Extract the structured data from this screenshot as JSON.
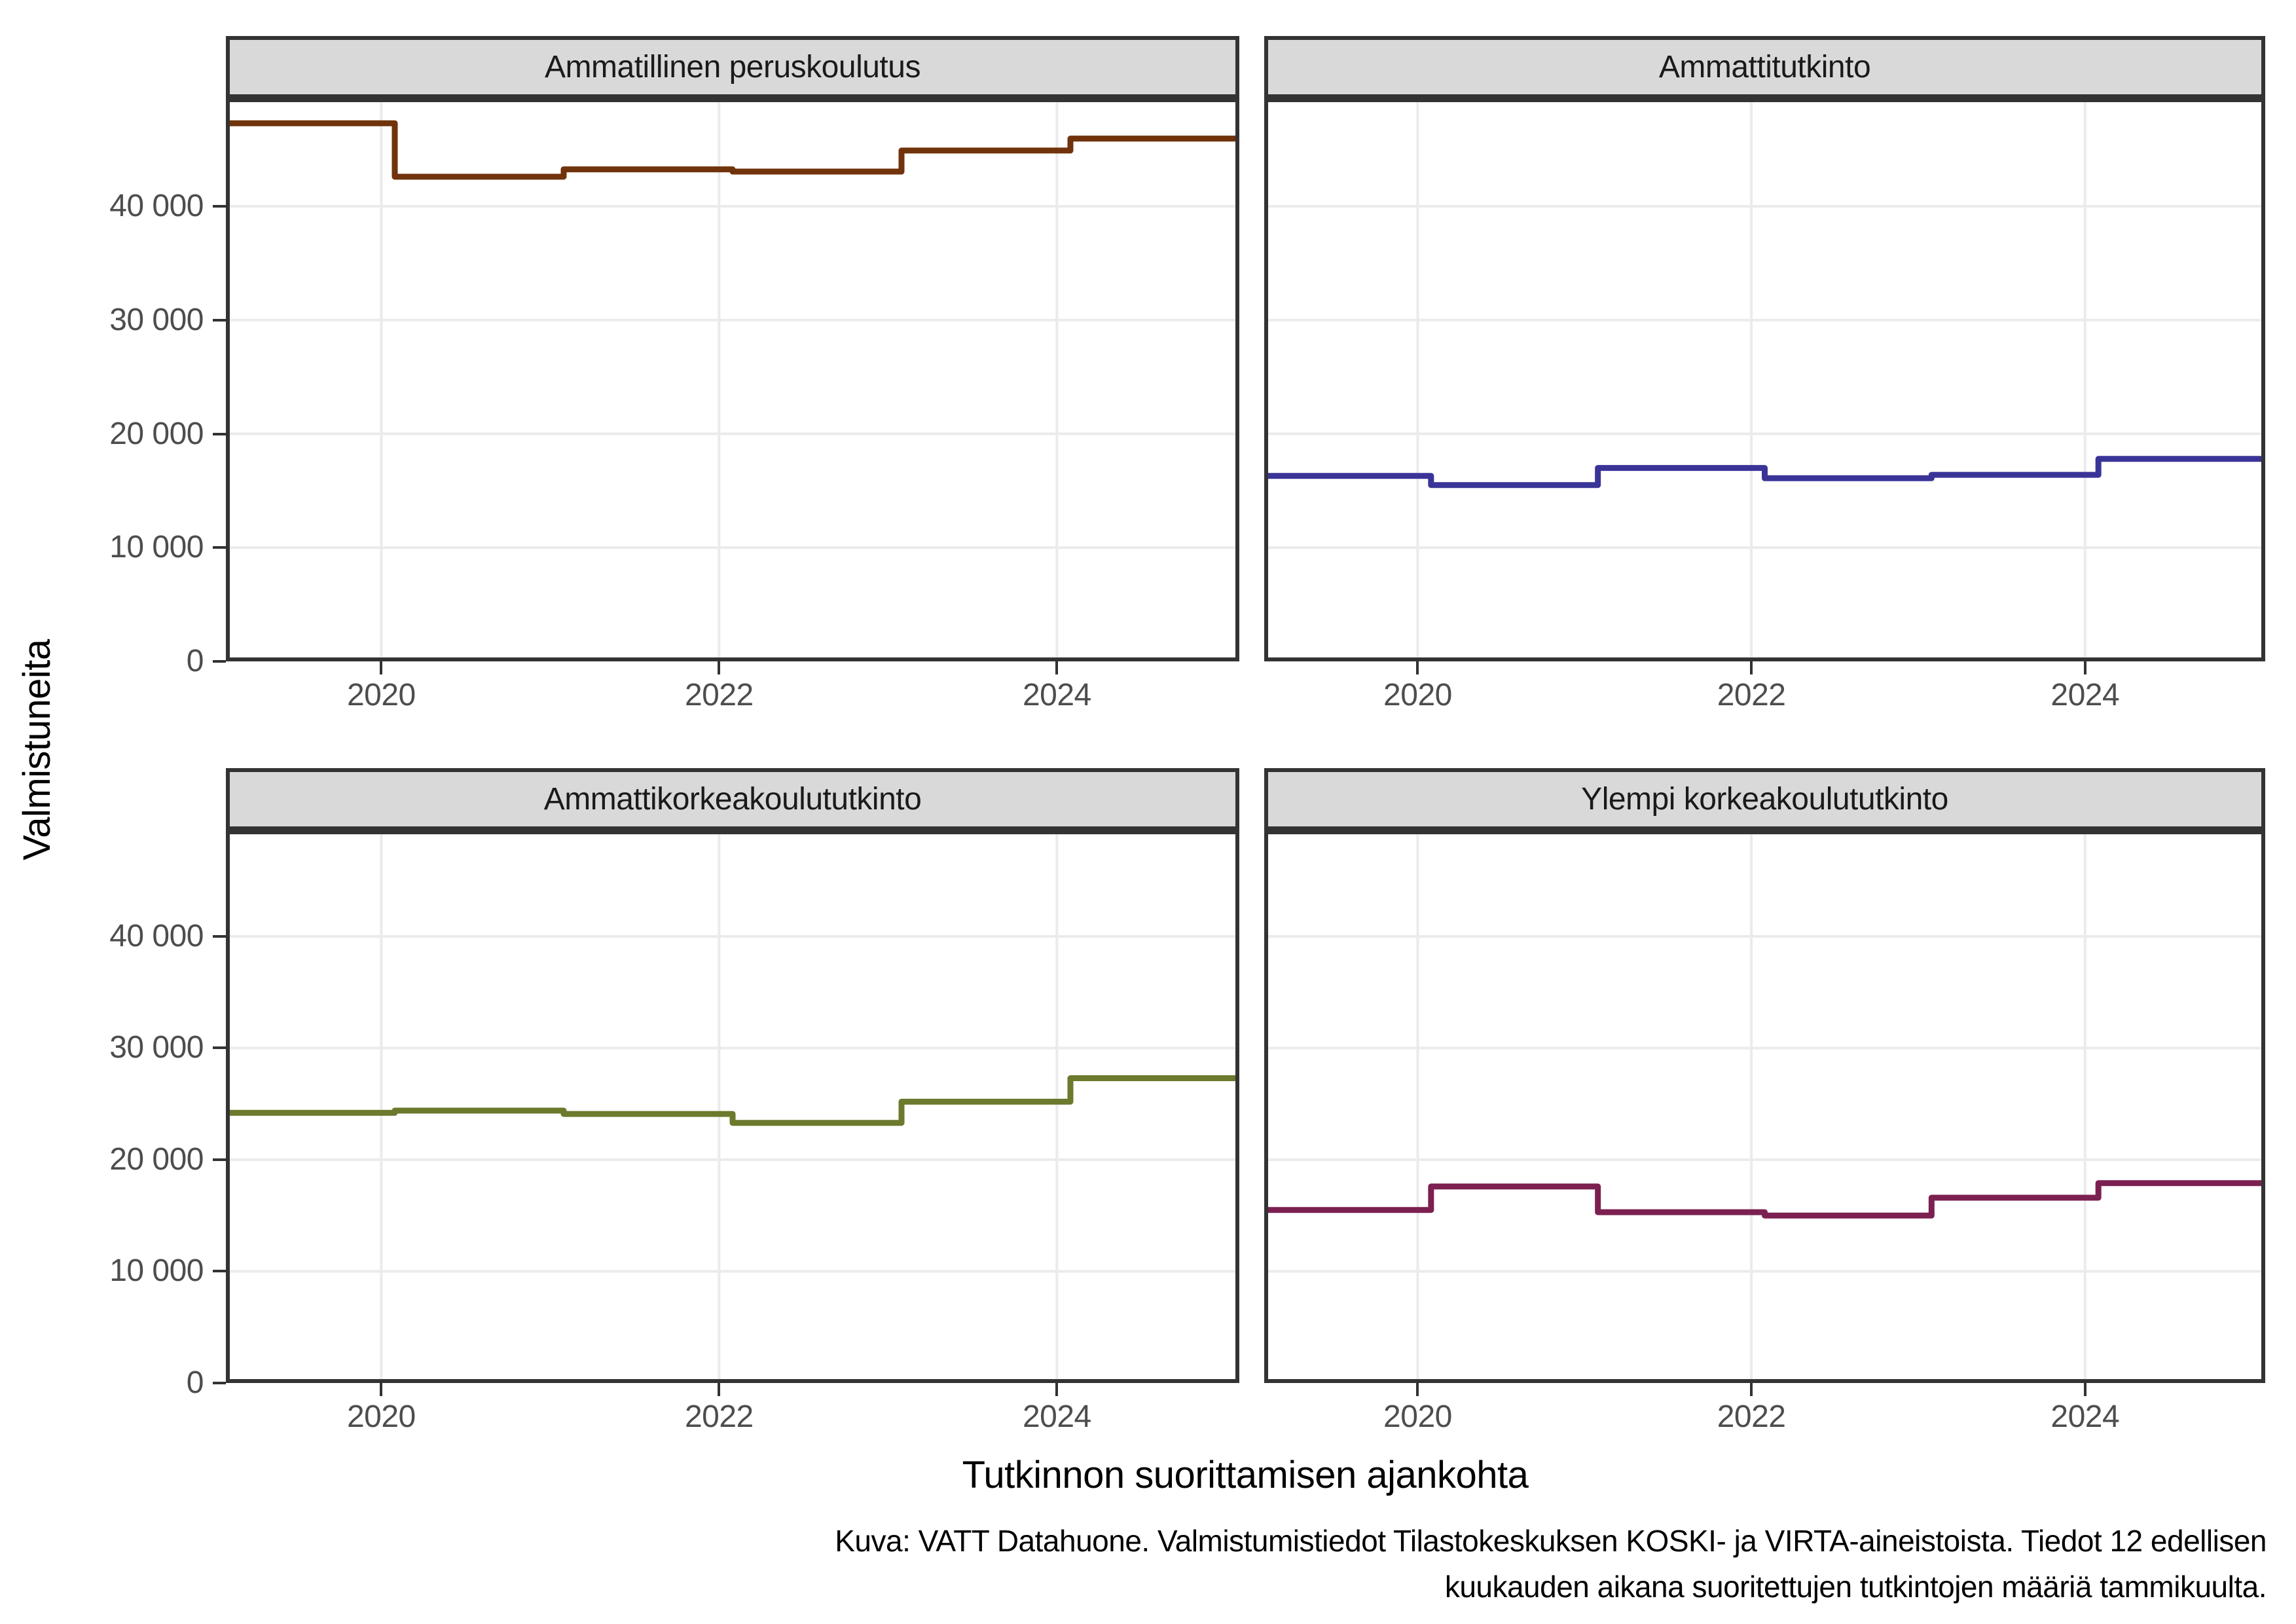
{
  "figure": {
    "y_axis_title": "Valmistuneita",
    "x_axis_title": "Tutkinnon suorittamisen ajankohta",
    "caption_line1": "Kuva: VATT Datahuone. Valmistumistiedot Tilastokeskuksen KOSKI- ja VIRTA-aineistoista. Tiedot 12 edellisen",
    "caption_line2": "kuukauden aikana suoritettujen tutkintojen määriä tammikuulta."
  },
  "chart_data": {
    "type": "line",
    "subtype": "step",
    "facets": "2x2 grid, shared axes",
    "x_years": [
      2019,
      2020,
      2021,
      2022,
      2023,
      2024
    ],
    "step_month_offset": 0.08,
    "x_domain": [
      2019.08,
      2025.08
    ],
    "x_ticks": {
      "values": [
        2020,
        2022,
        2024
      ],
      "labels": [
        "2020",
        "2022",
        "2024"
      ]
    },
    "y_domain": [
      0,
      49500
    ],
    "y_ticks": {
      "values": [
        0,
        10000,
        20000,
        30000,
        40000
      ],
      "labels": [
        "0",
        "10 000",
        "20 000",
        "30 000",
        "40 000"
      ]
    },
    "grid": "major-only",
    "legend": "none",
    "ylabel": "Valmistuneita",
    "xlabel": "Tutkinnon suorittamisen ajankohta",
    "panels": [
      {
        "title": "Ammatillinen peruskoulutus",
        "color": "#71330B",
        "values": [
          47300,
          42600,
          43250,
          43050,
          44900,
          45950
        ]
      },
      {
        "title": "Ammattitutkinto",
        "color": "#3A3498",
        "values": [
          16300,
          15500,
          17000,
          16100,
          16400,
          17800
        ]
      },
      {
        "title": "Ammattikorkeakoulututkinto",
        "color": "#6B7A2C",
        "values": [
          24200,
          24400,
          24100,
          23300,
          25200,
          27300
        ]
      },
      {
        "title": "Ylempi korkeakoulututkinto",
        "color": "#7B2050",
        "values": [
          15500,
          17600,
          15300,
          15000,
          16600,
          17900
        ]
      }
    ]
  },
  "style": {
    "background": "#FFFFFF",
    "grid_color": "#EBEBEB",
    "panel_border": "#333333",
    "strip_fill": "#D9D9D9",
    "strip_text": "#1A1A1A",
    "tick_text": "#4D4D4D",
    "axis_text": "#000000"
  }
}
